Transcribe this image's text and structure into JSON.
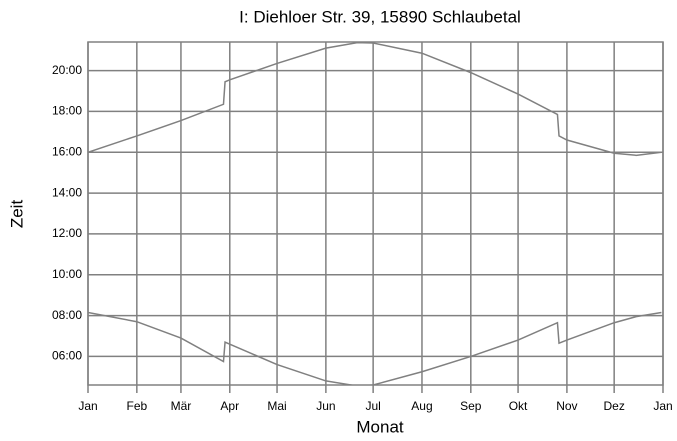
{
  "chart_data": {
    "type": "line",
    "title": "I: Diehloer Str. 39, 15890 Schlaubetal",
    "x_label": "Monat",
    "y_label": "Zeit",
    "xlim": [
      0,
      365
    ],
    "ylim": [
      4.6,
      21.4
    ],
    "xticks": [
      {
        "value": 0,
        "label": "Jan"
      },
      {
        "value": 31,
        "label": "Feb"
      },
      {
        "value": 59,
        "label": "Mär"
      },
      {
        "value": 90,
        "label": "Apr"
      },
      {
        "value": 120,
        "label": "Mai"
      },
      {
        "value": 151,
        "label": "Jun"
      },
      {
        "value": 181,
        "label": "Jul"
      },
      {
        "value": 212,
        "label": "Aug"
      },
      {
        "value": 243,
        "label": "Sep"
      },
      {
        "value": 273,
        "label": "Okt"
      },
      {
        "value": 304,
        "label": "Nov"
      },
      {
        "value": 334,
        "label": "Dez"
      },
      {
        "value": 365,
        "label": "Jan"
      }
    ],
    "yticks": [
      {
        "value": 6,
        "label": "06:00"
      },
      {
        "value": 8,
        "label": "08:00"
      },
      {
        "value": 10,
        "label": "10:00"
      },
      {
        "value": 12,
        "label": "12:00"
      },
      {
        "value": 14,
        "label": "14:00"
      },
      {
        "value": 16,
        "label": "16:00"
      },
      {
        "value": 18,
        "label": "18:00"
      },
      {
        "value": 20,
        "label": "20:00"
      }
    ],
    "grid": true,
    "x": [
      0,
      31,
      59,
      86,
      87,
      90,
      120,
      151,
      171,
      181,
      212,
      243,
      273,
      298,
      299,
      304,
      334,
      348,
      364
    ],
    "series": [
      {
        "color": "#808080",
        "values": [
          16.0,
          16.8,
          17.55,
          18.35,
          19.45,
          19.55,
          20.35,
          21.1,
          21.37,
          21.35,
          20.85,
          19.9,
          18.85,
          17.85,
          16.8,
          16.6,
          15.95,
          15.85,
          16.0
        ]
      },
      {
        "color": "#808080",
        "values": [
          8.15,
          7.7,
          6.9,
          5.75,
          6.7,
          6.6,
          5.6,
          4.8,
          4.55,
          4.6,
          5.25,
          6.0,
          6.8,
          7.65,
          6.65,
          6.8,
          7.65,
          7.95,
          8.15
        ]
      }
    ]
  }
}
